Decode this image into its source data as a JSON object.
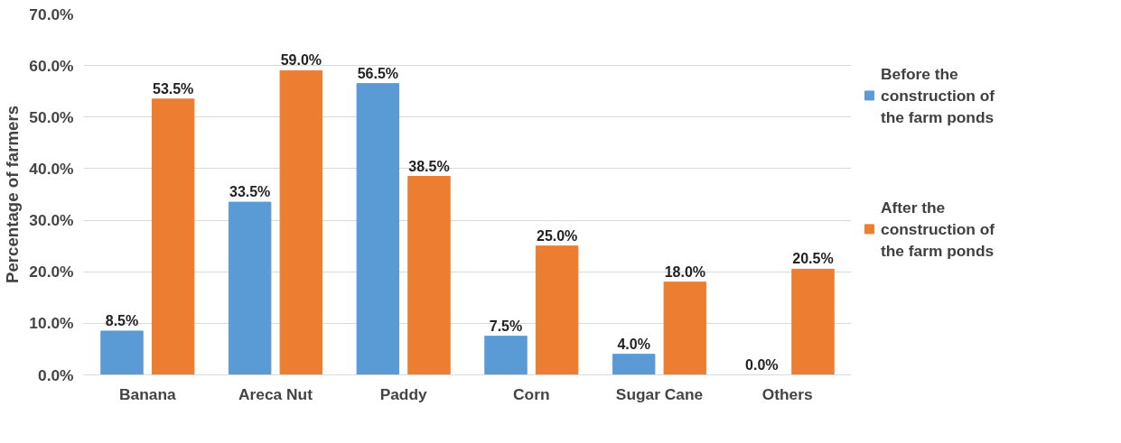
{
  "chart_data": {
    "type": "bar",
    "ylabel": "Percentage of farmers",
    "categories": [
      "Banana",
      "Areca Nut",
      "Paddy",
      "Corn",
      "Sugar Cane",
      "Others"
    ],
    "series": [
      {
        "name": "Before the construction of the farm ponds",
        "color": "#5b9bd5",
        "values": [
          8.5,
          33.5,
          56.5,
          7.5,
          4.0,
          0.0
        ],
        "value_labels": [
          "8.5%",
          "33.5%",
          "56.5%",
          "7.5%",
          "4.0%",
          "0.0%"
        ]
      },
      {
        "name": "After the construction of the farm ponds",
        "color": "#ed7d31",
        "values": [
          53.5,
          59.0,
          38.5,
          25.0,
          18.0,
          20.5
        ],
        "value_labels": [
          "53.5%",
          "59.0%",
          "38.5%",
          "25.0%",
          "18.0%",
          "20.5%"
        ]
      }
    ],
    "ylim": [
      0,
      70
    ],
    "yticks": [
      {
        "value": 0,
        "label": "0.0%"
      },
      {
        "value": 10,
        "label": "10.0%"
      },
      {
        "value": 20,
        "label": "20.0%"
      },
      {
        "value": 30,
        "label": "30.0%"
      },
      {
        "value": 40,
        "label": "40.0%"
      },
      {
        "value": 50,
        "label": "50.0%"
      },
      {
        "value": 60,
        "label": "60.0%"
      },
      {
        "value": 70,
        "label": "70.0%"
      }
    ],
    "grid": "y",
    "legend": "right"
  }
}
